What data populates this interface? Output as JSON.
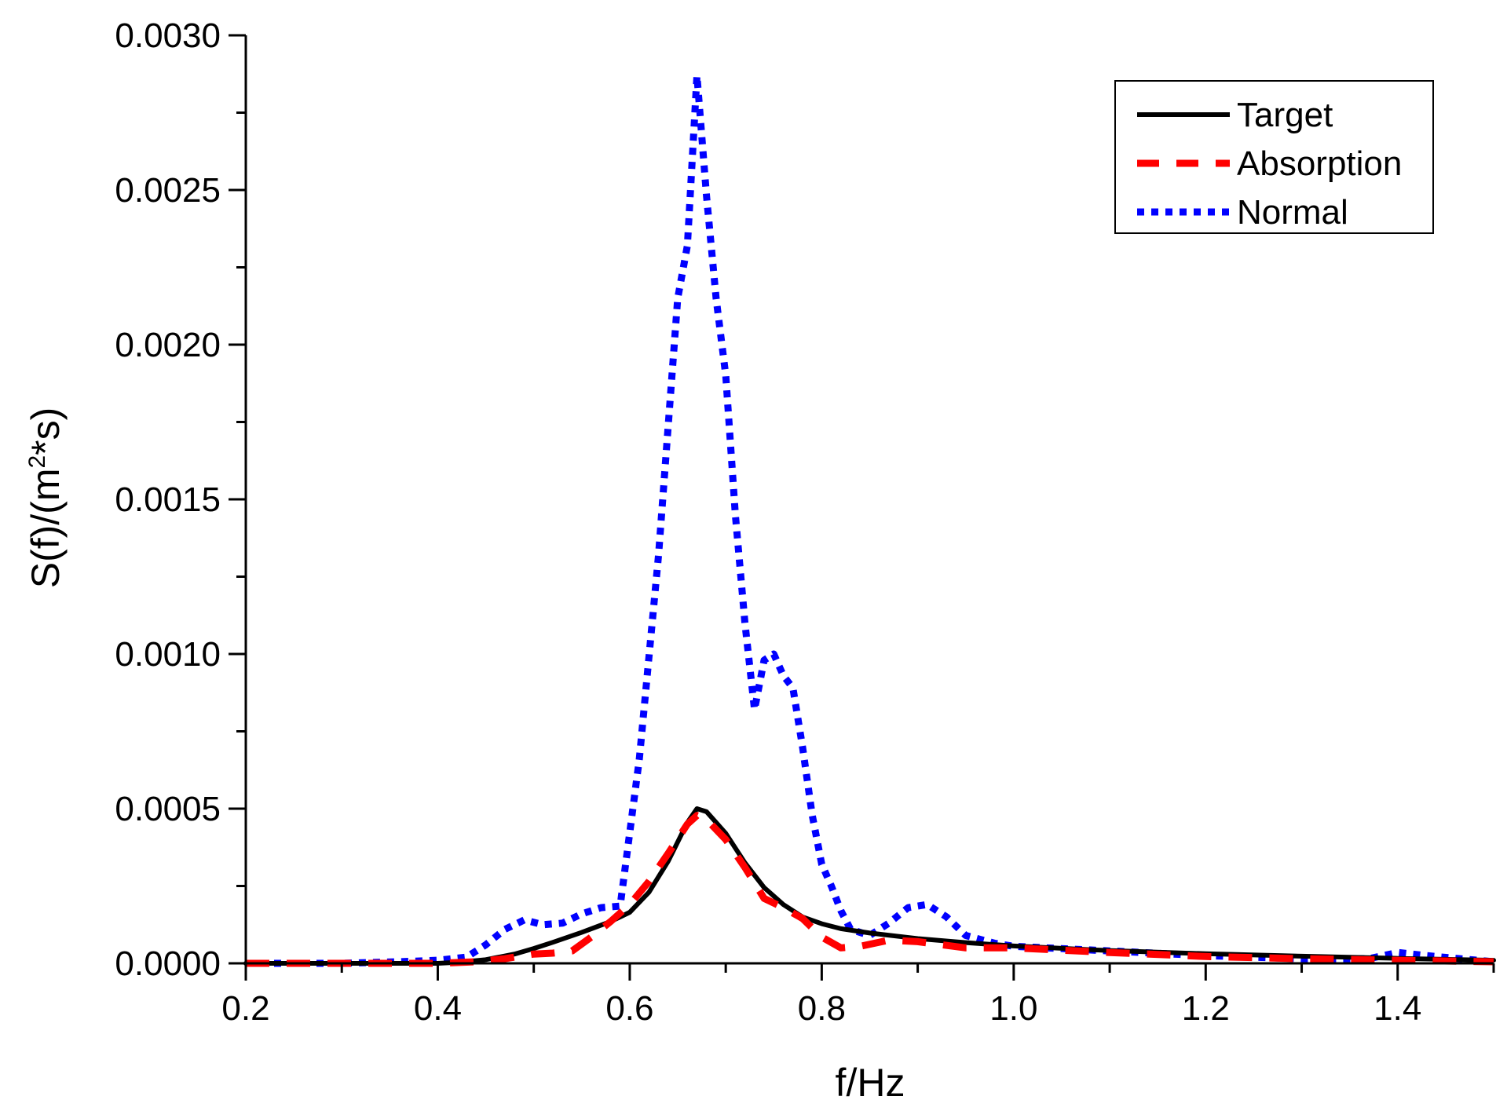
{
  "chart_data": {
    "type": "line",
    "title": "",
    "xlabel": "f/Hz",
    "ylabel": {
      "prefix": "S(f)/(m",
      "sup": "2",
      "suffix": "*s)"
    },
    "xlim": [
      0.2,
      1.5
    ],
    "ylim": [
      0.0,
      0.003
    ],
    "x_ticks": [
      0.2,
      0.4,
      0.6,
      0.8,
      1.0,
      1.2,
      1.4
    ],
    "x_tick_labels": [
      "0.2",
      "0.4",
      "0.6",
      "0.8",
      "1.0",
      "1.2",
      "1.4"
    ],
    "y_ticks": [
      0.0,
      0.0005,
      0.001,
      0.0015,
      0.002,
      0.0025,
      0.003
    ],
    "y_tick_labels": [
      "0.0000",
      "0.0005",
      "0.0010",
      "0.0015",
      "0.0020",
      "0.0025",
      "0.0030"
    ],
    "grid": false,
    "legend_position": "top-right",
    "series": [
      {
        "name": "Target",
        "color": "#000000",
        "style": "solid",
        "x": [
          0.2,
          0.3,
          0.4,
          0.42,
          0.45,
          0.48,
          0.5,
          0.52,
          0.55,
          0.58,
          0.6,
          0.62,
          0.64,
          0.66,
          0.67,
          0.68,
          0.7,
          0.72,
          0.74,
          0.76,
          0.78,
          0.8,
          0.82,
          0.85,
          0.9,
          0.95,
          1.0,
          1.1,
          1.2,
          1.3,
          1.4,
          1.5
        ],
        "y": [
          0.0,
          0.0,
          0.0,
          3e-06,
          1.2e-05,
          3e-05,
          4.8e-05,
          6.8e-05,
          0.0001,
          0.000135,
          0.000165,
          0.00023,
          0.00033,
          0.000455,
          0.0005,
          0.00049,
          0.00042,
          0.000325,
          0.000245,
          0.00019,
          0.00015,
          0.000128,
          0.000112,
          9.8e-05,
          8e-05,
          6.7e-05,
          5.6e-05,
          4.1e-05,
          3.1e-05,
          2.3e-05,
          1.6e-05,
          1e-05
        ]
      },
      {
        "name": "Absorption",
        "color": "#ff0000",
        "style": "dashed",
        "x": [
          0.2,
          0.3,
          0.4,
          0.44,
          0.47,
          0.5,
          0.52,
          0.54,
          0.56,
          0.58,
          0.6,
          0.62,
          0.64,
          0.66,
          0.67,
          0.68,
          0.7,
          0.72,
          0.74,
          0.76,
          0.78,
          0.8,
          0.82,
          0.84,
          0.87,
          0.9,
          0.95,
          1.0,
          1.1,
          1.2,
          1.3,
          1.4,
          1.5
        ],
        "y": [
          0.0,
          0.0,
          0.0,
          5e-06,
          1.5e-05,
          3e-05,
          3.3e-05,
          4e-05,
          8.5e-05,
          0.000135,
          0.00019,
          0.000265,
          0.000355,
          0.00045,
          0.000478,
          0.000465,
          0.0004,
          0.00031,
          0.00021,
          0.00018,
          0.000145,
          8.5e-05,
          5e-05,
          5.5e-05,
          7.5e-05,
          7e-05,
          5e-05,
          5e-05,
          3.5e-05,
          2.2e-05,
          1.5e-05,
          1e-05,
          5e-06
        ]
      },
      {
        "name": "Normal",
        "color": "#0000ff",
        "style": "dotted",
        "x": [
          0.2,
          0.3,
          0.36,
          0.4,
          0.43,
          0.45,
          0.47,
          0.49,
          0.51,
          0.53,
          0.55,
          0.57,
          0.59,
          0.61,
          0.63,
          0.65,
          0.66,
          0.67,
          0.68,
          0.69,
          0.7,
          0.71,
          0.72,
          0.73,
          0.74,
          0.75,
          0.76,
          0.77,
          0.78,
          0.79,
          0.8,
          0.81,
          0.82,
          0.83,
          0.85,
          0.87,
          0.89,
          0.91,
          0.93,
          0.95,
          0.98,
          1.0,
          1.1,
          1.2,
          1.3,
          1.37,
          1.4,
          1.43,
          1.5
        ],
        "y": [
          0.0,
          0.0,
          5e-06,
          1e-05,
          2e-05,
          6e-05,
          0.00011,
          0.00014,
          0.000125,
          0.00013,
          0.00016,
          0.00018,
          0.000185,
          0.00066,
          0.00132,
          0.00215,
          0.00232,
          0.00287,
          0.00248,
          0.00215,
          0.0019,
          0.00145,
          0.0011,
          0.00082,
          0.00098,
          0.001,
          0.00093,
          0.00089,
          0.0007,
          0.00048,
          0.00032,
          0.00025,
          0.00017,
          0.00011,
          9e-05,
          0.00013,
          0.00018,
          0.00019,
          0.00015,
          9e-05,
          6.5e-05,
          5.5e-05,
          4e-05,
          2.5e-05,
          1.5e-05,
          1.5e-05,
          3.5e-05,
          2.5e-05,
          5e-06
        ]
      }
    ]
  }
}
